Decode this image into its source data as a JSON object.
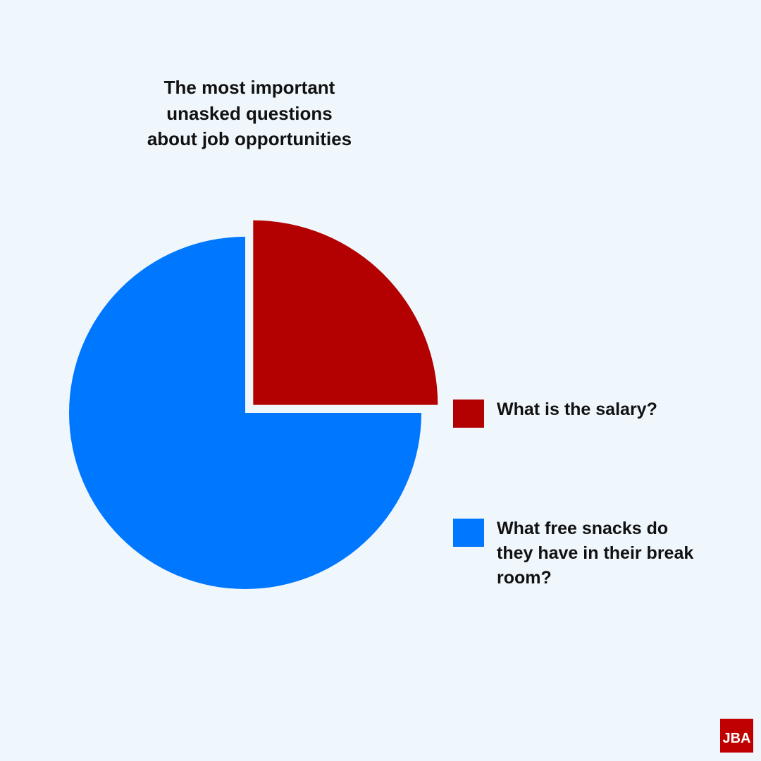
{
  "chart_data": {
    "type": "pie",
    "title": "The most important unasked questions about job opportunities",
    "categories": [
      "What is the salary?",
      "What free snacks do they have in their break room?"
    ],
    "values": [
      25,
      75
    ],
    "colors": [
      "#b30000",
      "#0077ff"
    ]
  },
  "logo": "JBA"
}
